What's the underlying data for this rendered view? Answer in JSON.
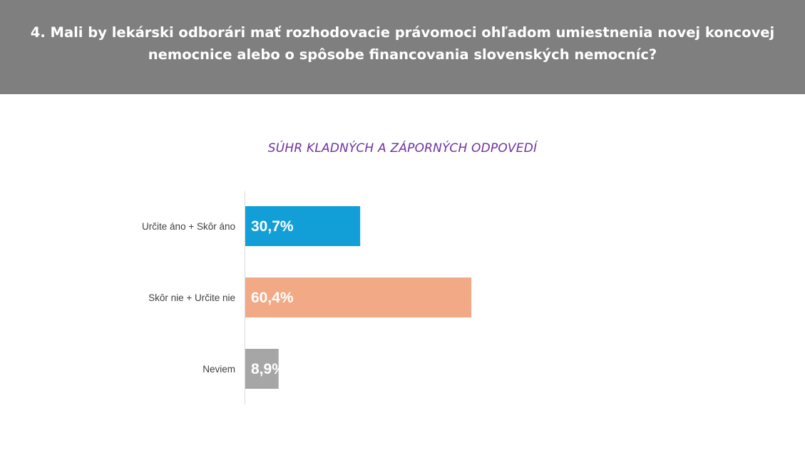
{
  "header": {
    "title_line1": "4. Mali by lekárski odborári mať rozhodovacie právomoci ohľadom umiestnenia novej koncovej",
    "title_line2": "nemocnice alebo o spôsobe financovania slovenských nemocníc?",
    "background": "#7f7f7f"
  },
  "chart_data": {
    "type": "bar",
    "orientation": "horizontal",
    "title": "SÚHR KLADNÝCH A ZÁPORNÝCH ODPOVEDÍ",
    "categories": [
      "Určite áno + Skôr áno",
      "Skôr nie + Určite nie",
      "Neviem"
    ],
    "values": [
      30.7,
      60.4,
      8.9
    ],
    "value_labels": [
      "30,7%",
      "60,4%",
      "8,9%"
    ],
    "colors": [
      "#129fd8",
      "#f2a985",
      "#a6a6a6"
    ],
    "xlim": [
      0,
      100
    ],
    "grid": false,
    "legend": "none"
  }
}
